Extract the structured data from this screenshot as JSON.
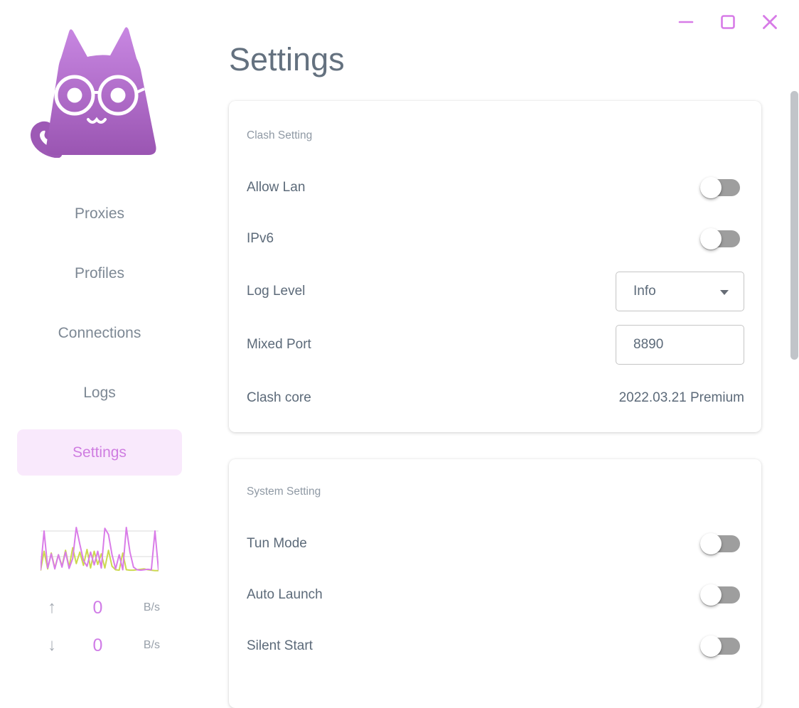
{
  "window_controls": [
    {
      "id": "minimize",
      "glyph": "minus"
    },
    {
      "id": "maximize",
      "glyph": "square"
    },
    {
      "id": "close",
      "glyph": "x"
    }
  ],
  "header": {
    "title": "Settings"
  },
  "sidebar": {
    "logo": "cat-logo",
    "items": [
      {
        "id": "proxies",
        "label": "Proxies",
        "active": false
      },
      {
        "id": "profiles",
        "label": "Profiles",
        "active": false
      },
      {
        "id": "connections",
        "label": "Connections",
        "active": false
      },
      {
        "id": "logs",
        "label": "Logs",
        "active": false
      },
      {
        "id": "settings",
        "label": "Settings",
        "active": true
      }
    ],
    "traffic": {
      "stats": [
        {
          "id": "upload",
          "arrow": "↑",
          "value": "0",
          "unit": "B/s"
        },
        {
          "id": "download",
          "arrow": "↓",
          "value": "0",
          "unit": "B/s"
        }
      ],
      "graph": {
        "up_color": "#d97ce8",
        "down_color": "#ccd94f",
        "grid_color": "#e7e7e7",
        "up_series": [
          3,
          92,
          8,
          40,
          6,
          38,
          10,
          44,
          7,
          30,
          100,
          62,
          25,
          12,
          44,
          15,
          46,
          8,
          98,
          84,
          38,
          6,
          38,
          4,
          100,
          44,
          10,
          4,
          3,
          4,
          5,
          4,
          92,
          3
        ],
        "down_series": [
          2,
          46,
          6,
          42,
          8,
          38,
          12,
          48,
          10,
          54,
          18,
          44,
          14,
          50,
          8,
          46,
          16,
          40,
          8,
          48,
          12,
          4,
          3,
          42,
          4,
          3,
          3,
          4,
          5,
          6,
          4,
          3,
          2,
          2
        ]
      }
    }
  },
  "cards": [
    {
      "id": "clash-setting",
      "section_label": "Clash Setting",
      "rows": [
        {
          "id": "allow-lan",
          "label": "Allow Lan",
          "control": "toggle",
          "state": "off"
        },
        {
          "id": "ipv6",
          "label": "IPv6",
          "control": "toggle",
          "state": "off"
        },
        {
          "id": "log-level",
          "label": "Log Level",
          "control": "select",
          "value": "Info"
        },
        {
          "id": "mixed-port",
          "label": "Mixed Port",
          "control": "input",
          "value": "8890"
        },
        {
          "id": "clash-core",
          "label": "Clash core",
          "control": "text",
          "value": "2022.03.21 Premium"
        }
      ]
    },
    {
      "id": "system-setting",
      "section_label": "System Setting",
      "rows": [
        {
          "id": "tun-mode",
          "label": "Tun Mode",
          "control": "toggle",
          "state": "off"
        },
        {
          "id": "auto-launch",
          "label": "Auto Launch",
          "control": "toggle",
          "state": "off"
        },
        {
          "id": "silent-start",
          "label": "Silent Start",
          "control": "toggle",
          "state": "off"
        }
      ]
    }
  ],
  "colors": {
    "accent_purple": "#d77be7",
    "active_nav_bg": "#f9e9fc",
    "active_nav_text": "#cf7de1",
    "title_text": "#64717f",
    "nav_text": "#7d8894",
    "section_label": "#8f99a4",
    "row_label": "#5c6a79",
    "toggle_track_off": "#9e9e9e",
    "graph_up": "#d97ce8",
    "graph_down": "#ccd94f",
    "stats_value": "#d07ce7",
    "logo_gradient_top": "#c887e2",
    "logo_gradient_bottom": "#9a55b2"
  }
}
